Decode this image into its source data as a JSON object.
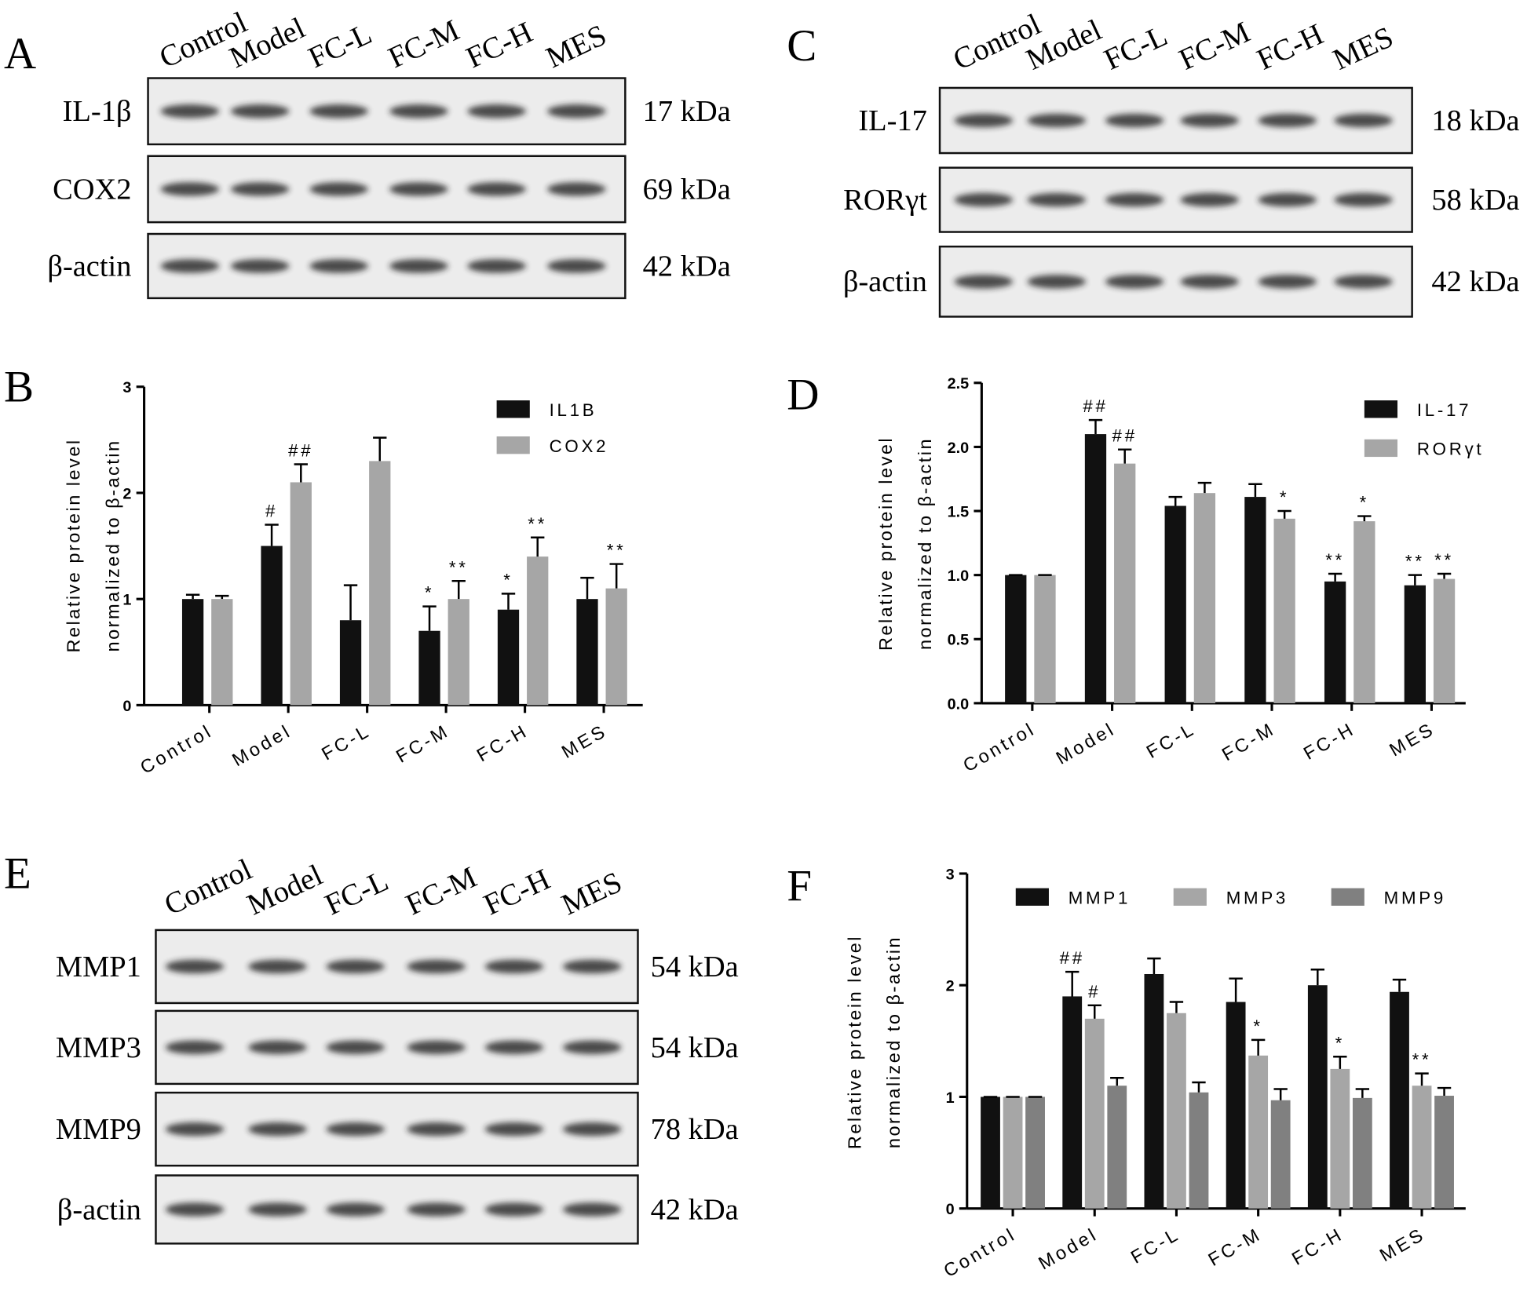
{
  "blots": [
    {
      "panel": "A",
      "lanes": [
        "Control",
        "Model",
        "FC-L",
        "FC-M",
        "FC-H",
        "MES"
      ],
      "rows": [
        {
          "label": "IL-1β",
          "size": "17 kDa"
        },
        {
          "label": "COX2",
          "size": "69 kDa"
        },
        {
          "label": "β-actin",
          "size": "42 kDa"
        }
      ]
    },
    {
      "panel": "C",
      "lanes": [
        "Control",
        "Model",
        "FC-L",
        "FC-M",
        "FC-H",
        "MES"
      ],
      "rows": [
        {
          "label": "IL-17",
          "size": "18 kDa"
        },
        {
          "label": "RORγt",
          "size": "58 kDa"
        },
        {
          "label": "β-actin",
          "size": "42 kDa"
        }
      ]
    },
    {
      "panel": "E",
      "lanes": [
        "Control",
        "Model",
        "FC-L",
        "FC-M",
        "FC-H",
        "MES"
      ],
      "rows": [
        {
          "label": "MMP1",
          "size": "54 kDa"
        },
        {
          "label": "MMP3",
          "size": "54 kDa"
        },
        {
          "label": "MMP9",
          "size": "78 kDa"
        },
        {
          "label": "β-actin",
          "size": "42 kDa"
        }
      ]
    }
  ],
  "chart_data": [
    {
      "type": "bar",
      "panel": "B",
      "ylabel": [
        "Relative protein level",
        "normalized to β-actin"
      ],
      "categories": [
        "Control",
        "Model",
        "FC-L",
        "FC-M",
        "FC-H",
        "MES"
      ],
      "series": [
        {
          "name": "IL1B",
          "color": "#111111",
          "values": [
            1.0,
            1.5,
            0.8,
            0.7,
            0.9,
            1.0
          ],
          "errors": [
            0.04,
            0.2,
            0.33,
            0.23,
            0.15,
            0.2
          ],
          "annotations": [
            null,
            "#",
            null,
            "*",
            "*",
            null
          ]
        },
        {
          "name": "COX2",
          "color": "#a6a6a6",
          "values": [
            1.0,
            2.1,
            2.3,
            1.0,
            1.4,
            1.1
          ],
          "errors": [
            0.03,
            0.17,
            0.22,
            0.17,
            0.18,
            0.23
          ],
          "annotations": [
            null,
            "##",
            null,
            "**",
            "**",
            "**"
          ]
        }
      ],
      "ylim": [
        0,
        3
      ],
      "yticks": [
        0,
        1,
        2,
        3
      ],
      "legend": "upper right"
    },
    {
      "type": "bar",
      "panel": "D",
      "ylabel": [
        "Relative protein level",
        "normalized to β-actin"
      ],
      "categories": [
        "Control",
        "Model",
        "FC-L",
        "FC-M",
        "FC-H",
        "MES"
      ],
      "series": [
        {
          "name": "IL-17",
          "color": "#111111",
          "values": [
            1.0,
            2.1,
            1.54,
            1.61,
            0.95,
            0.92
          ],
          "errors": [
            0,
            0.11,
            0.07,
            0.1,
            0.06,
            0.08
          ],
          "annotations": [
            null,
            "##",
            null,
            null,
            "**",
            "**"
          ]
        },
        {
          "name": "RORγt",
          "color": "#a6a6a6",
          "values": [
            1.0,
            1.87,
            1.64,
            1.44,
            1.42,
            0.97
          ],
          "errors": [
            0,
            0.11,
            0.08,
            0.06,
            0.04,
            0.04
          ],
          "annotations": [
            null,
            "##",
            null,
            "*",
            "*",
            "**"
          ]
        }
      ],
      "ylim": [
        0,
        2.5
      ],
      "yticks": [
        {
          "value": 0,
          "label": "0.0"
        },
        0.5,
        {
          "value": 1,
          "label": "1.0"
        },
        1.5,
        {
          "value": 2,
          "label": "2.0"
        },
        2.5
      ],
      "legend": "upper right"
    },
    {
      "type": "bar",
      "panel": "F",
      "ylabel": [
        "Relative protein level",
        "normalized to β-actin"
      ],
      "categories": [
        "Control",
        "Model",
        "FC-L",
        "FC-M",
        "FC-H",
        "MES"
      ],
      "series": [
        {
          "name": "MMP1",
          "color": "#111111",
          "values": [
            1.0,
            1.9,
            2.1,
            1.85,
            2.0,
            1.94
          ],
          "errors": [
            0,
            0.22,
            0.14,
            0.21,
            0.14,
            0.11
          ],
          "annotations": [
            null,
            "##",
            null,
            null,
            null,
            null
          ]
        },
        {
          "name": "MMP3",
          "color": "#a6a6a6",
          "values": [
            1.0,
            1.7,
            1.75,
            1.37,
            1.25,
            1.1
          ],
          "errors": [
            0,
            0.12,
            0.1,
            0.14,
            0.11,
            0.11
          ],
          "annotations": [
            null,
            "#",
            null,
            "*",
            "*",
            "**"
          ]
        },
        {
          "name": "MMP9",
          "color": "#808080",
          "values": [
            1.0,
            1.1,
            1.04,
            0.97,
            0.99,
            1.01
          ],
          "errors": [
            0,
            0.07,
            0.09,
            0.1,
            0.08,
            0.07
          ],
          "annotations": [
            null,
            null,
            null,
            null,
            null,
            null
          ]
        }
      ],
      "ylim": [
        0,
        3
      ],
      "yticks": [
        0,
        1,
        2,
        3
      ],
      "legend": "top"
    }
  ]
}
